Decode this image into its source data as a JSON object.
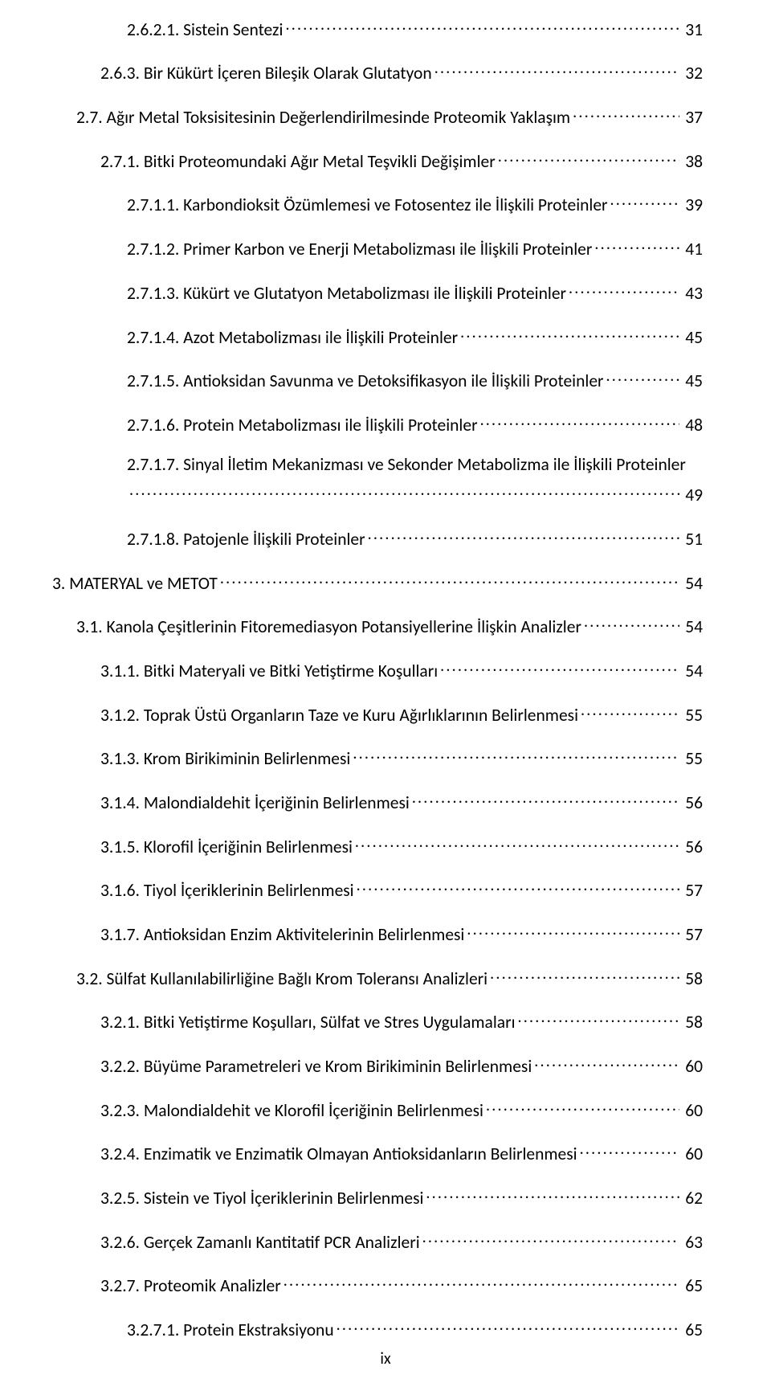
{
  "page_footer": "ix",
  "entries": [
    {
      "indent": 3,
      "text": "2.6.2.1. Sistein Sentezi",
      "page": "31"
    },
    {
      "indent": 2,
      "text": "2.6.3. Bir Kükürt İçeren Bileşik Olarak Glutatyon",
      "page": "32"
    },
    {
      "indent": 1,
      "text": "2.7. Ağır Metal Toksisitesinin Değerlendirilmesinde Proteomik Yaklaşım",
      "page": "37"
    },
    {
      "indent": 2,
      "text": "2.7.1. Bitki Proteomundaki Ağır Metal Teşvikli Değişimler",
      "page": "38"
    },
    {
      "indent": 3,
      "text": "2.7.1.1. Karbondioksit Özümlemesi ve Fotosentez ile İlişkili Proteinler",
      "page": "39"
    },
    {
      "indent": 3,
      "text": "2.7.1.2. Primer Karbon ve Enerji Metabolizması ile İlişkili Proteinler",
      "page": "41"
    },
    {
      "indent": 3,
      "text": "2.7.1.3. Kükürt ve Glutatyon Metabolizması ile İlişkili Proteinler",
      "page": "43"
    },
    {
      "indent": 3,
      "text": "2.7.1.4. Azot Metabolizması ile İlişkili Proteinler",
      "page": "45"
    },
    {
      "indent": 3,
      "text": "2.7.1.5. Antioksidan Savunma ve Detoksifikasyon ile İlişkili Proteinler",
      "page": "45"
    },
    {
      "indent": 3,
      "text": "2.7.1.6. Protein Metabolizması ile İlişkili Proteinler",
      "page": "48"
    },
    {
      "indent": 3,
      "wrap": true,
      "text": "2.7.1.7. Sinyal İletim Mekanizması ve Sekonder Metabolizma ile İlişkili Proteinler",
      "page": "49"
    },
    {
      "indent": 3,
      "text": "2.7.1.8. Patojenle İlişkili Proteinler",
      "page": "51"
    },
    {
      "indent": 0,
      "text": "3. MATERYAL ve METOT",
      "page": "54"
    },
    {
      "indent": 1,
      "text": "3.1. Kanola Çeşitlerinin Fitoremediasyon Potansiyellerine İlişkin Analizler",
      "page": "54"
    },
    {
      "indent": 2,
      "text": "3.1.1. Bitki Materyali ve Bitki Yetiştirme Koşulları",
      "page": "54"
    },
    {
      "indent": 2,
      "text": "3.1.2. Toprak Üstü Organların Taze ve Kuru Ağırlıklarının Belirlenmesi",
      "page": "55"
    },
    {
      "indent": 2,
      "text": "3.1.3. Krom Birikiminin Belirlenmesi",
      "page": "55"
    },
    {
      "indent": 2,
      "text": "3.1.4. Malondialdehit İçeriğinin Belirlenmesi",
      "page": "56"
    },
    {
      "indent": 2,
      "text": "3.1.5. Klorofil İçeriğinin Belirlenmesi",
      "page": "56"
    },
    {
      "indent": 2,
      "text": "3.1.6. Tiyol İçeriklerinin Belirlenmesi",
      "page": "57"
    },
    {
      "indent": 2,
      "text": "3.1.7. Antioksidan Enzim Aktivitelerinin Belirlenmesi",
      "page": "57"
    },
    {
      "indent": 1,
      "text": "3.2. Sülfat Kullanılabilirliğine Bağlı Krom Toleransı Analizleri",
      "page": "58"
    },
    {
      "indent": 2,
      "text": "3.2.1. Bitki Yetiştirme Koşulları, Sülfat ve Stres Uygulamaları",
      "page": "58"
    },
    {
      "indent": 2,
      "text": "3.2.2. Büyüme Parametreleri ve Krom Birikiminin Belirlenmesi",
      "page": "60"
    },
    {
      "indent": 2,
      "text": "3.2.3. Malondialdehit ve Klorofil İçeriğinin Belirlenmesi",
      "page": "60"
    },
    {
      "indent": 2,
      "text": "3.2.4. Enzimatik ve Enzimatik Olmayan Antioksidanların Belirlenmesi",
      "page": "60"
    },
    {
      "indent": 2,
      "text": "3.2.5. Sistein ve Tiyol İçeriklerinin Belirlenmesi",
      "page": "62"
    },
    {
      "indent": 2,
      "text": "3.2.6. Gerçek Zamanlı Kantitatif PCR Analizleri",
      "page": "63"
    },
    {
      "indent": 2,
      "text": "3.2.7. Proteomik Analizler",
      "page": "65"
    },
    {
      "indent": 3,
      "text": "3.2.7.1. Protein Ekstraksiyonu",
      "page": "65"
    }
  ]
}
